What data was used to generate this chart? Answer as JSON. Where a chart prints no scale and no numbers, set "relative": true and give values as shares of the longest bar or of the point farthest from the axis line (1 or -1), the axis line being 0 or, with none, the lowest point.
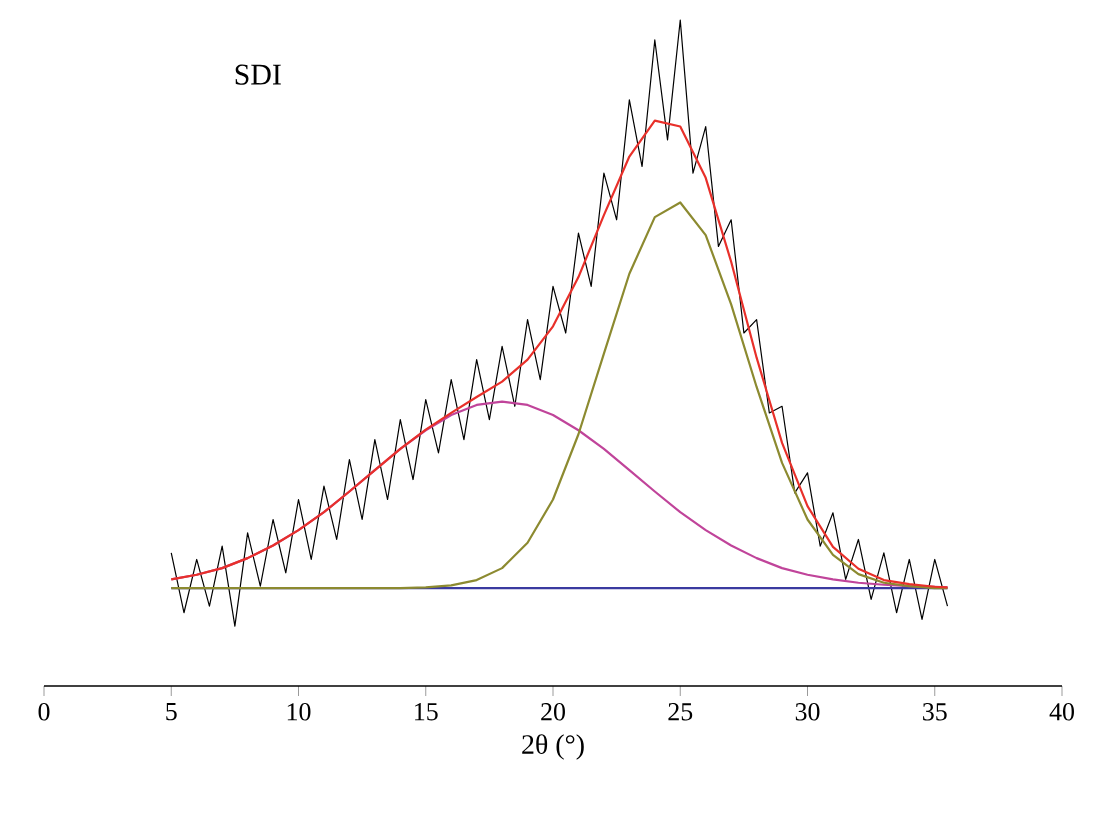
{
  "chart_data": {
    "type": "line",
    "title": "SDI",
    "xlabel": "2θ (°)",
    "relative": true,
    "marker": "none",
    "xlim": [
      0,
      40
    ],
    "xticks": [
      0,
      5,
      10,
      15,
      20,
      25,
      30,
      35,
      40
    ],
    "series": [
      {
        "color": "#000000",
        "x": [
          5,
          5.5,
          6,
          6.5,
          7,
          7.5,
          8,
          8.5,
          9,
          9.5,
          10,
          10.5,
          11,
          11.5,
          12,
          12.5,
          13,
          13.5,
          14,
          14.5,
          15,
          15.5,
          16,
          16.5,
          17,
          17.5,
          18,
          18.5,
          19,
          19.5,
          20,
          20.5,
          21,
          21.5,
          22,
          22.5,
          23,
          23.5,
          24,
          24.5,
          25,
          25.5,
          26,
          26.5,
          27,
          27.5,
          28,
          28.5,
          29,
          29.5,
          30,
          30.5,
          31,
          31.5,
          32,
          32.5,
          33,
          33.5,
          34,
          34.5,
          35,
          35.5
        ],
        "values": [
          0.2,
          0.11,
          0.19,
          0.12,
          0.21,
          0.09,
          0.23,
          0.15,
          0.25,
          0.17,
          0.28,
          0.19,
          0.3,
          0.22,
          0.34,
          0.25,
          0.37,
          0.28,
          0.4,
          0.31,
          0.43,
          0.35,
          0.46,
          0.37,
          0.49,
          0.4,
          0.51,
          0.42,
          0.55,
          0.46,
          0.6,
          0.53,
          0.68,
          0.6,
          0.77,
          0.7,
          0.88,
          0.78,
          0.97,
          0.82,
          1.0,
          0.77,
          0.84,
          0.66,
          0.7,
          0.53,
          0.55,
          0.41,
          0.42,
          0.29,
          0.32,
          0.21,
          0.26,
          0.16,
          0.22,
          0.13,
          0.2,
          0.11,
          0.19,
          0.1,
          0.19,
          0.12
        ]
      },
      {
        "color": "#3a3aa0",
        "x": [
          5,
          35.5
        ],
        "values": [
          0.147,
          0.147
        ]
      },
      {
        "color": "#c0449a",
        "x": [
          5,
          6,
          7,
          8,
          9,
          10,
          11,
          12,
          13,
          14,
          15,
          16,
          17,
          18,
          19,
          20,
          21,
          22,
          23,
          24,
          25,
          26,
          27,
          28,
          29,
          30,
          31,
          32,
          33,
          34,
          35,
          35.5
        ],
        "values": [
          0.16,
          0.167,
          0.177,
          0.192,
          0.211,
          0.234,
          0.261,
          0.292,
          0.324,
          0.356,
          0.384,
          0.407,
          0.422,
          0.427,
          0.422,
          0.407,
          0.384,
          0.356,
          0.324,
          0.292,
          0.261,
          0.234,
          0.211,
          0.192,
          0.177,
          0.167,
          0.16,
          0.155,
          0.152,
          0.15,
          0.149,
          0.148
        ]
      },
      {
        "color": "#8c8a30",
        "x": [
          5,
          14,
          15,
          16,
          17,
          18,
          19,
          20,
          21,
          22,
          23,
          24,
          25,
          26,
          27,
          28,
          29,
          30,
          31,
          32,
          33,
          34,
          35,
          35.5
        ],
        "values": [
          0.147,
          0.147,
          0.148,
          0.151,
          0.159,
          0.177,
          0.215,
          0.28,
          0.378,
          0.499,
          0.619,
          0.704,
          0.726,
          0.677,
          0.573,
          0.449,
          0.335,
          0.25,
          0.197,
          0.168,
          0.155,
          0.15,
          0.147,
          0.147
        ]
      },
      {
        "color": "#e8302a",
        "x": [
          5,
          6,
          7,
          8,
          9,
          10,
          11,
          12,
          13,
          14,
          15,
          16,
          17,
          18,
          19,
          20,
          21,
          22,
          23,
          24,
          25,
          26,
          27,
          28,
          29,
          30,
          31,
          32,
          33,
          34,
          35,
          35.5
        ],
        "values": [
          0.16,
          0.167,
          0.177,
          0.192,
          0.211,
          0.234,
          0.261,
          0.292,
          0.324,
          0.356,
          0.385,
          0.41,
          0.434,
          0.457,
          0.49,
          0.54,
          0.614,
          0.707,
          0.795,
          0.849,
          0.84,
          0.763,
          0.637,
          0.493,
          0.365,
          0.27,
          0.209,
          0.176,
          0.159,
          0.153,
          0.149,
          0.148
        ]
      }
    ]
  }
}
